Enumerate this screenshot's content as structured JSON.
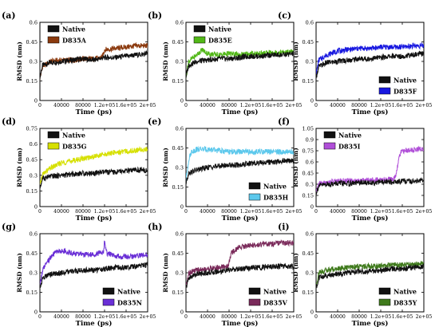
{
  "chart_data": [
    {
      "type": "line",
      "panel_label": "(a)",
      "xlabel": "Time (ps)",
      "ylabel": "RMSD (nm)",
      "xlim": [
        0,
        200000
      ],
      "ylim": [
        0,
        0.6
      ],
      "x_ticks": [
        "0",
        "40000",
        "80000",
        "1.2e+05",
        "1.6e+05",
        "2e+05"
      ],
      "y_ticks": [
        "0",
        "0.15",
        "0.3",
        "0.45",
        "0.6"
      ],
      "legend_position": "top-left",
      "series": [
        {
          "name": "Native",
          "color": "#111111",
          "x": [
            0,
            5000,
            20000,
            40000,
            60000,
            80000,
            100000,
            120000,
            140000,
            160000,
            180000,
            200000
          ],
          "y": [
            0.18,
            0.27,
            0.29,
            0.3,
            0.31,
            0.32,
            0.31,
            0.33,
            0.33,
            0.34,
            0.35,
            0.36
          ]
        },
        {
          "name": "D835A",
          "color": "#8b3a0e",
          "x": [
            0,
            5000,
            20000,
            40000,
            60000,
            80000,
            100000,
            115000,
            120000,
            140000,
            160000,
            180000,
            200000
          ],
          "y": [
            0.17,
            0.26,
            0.3,
            0.31,
            0.31,
            0.32,
            0.32,
            0.33,
            0.39,
            0.4,
            0.41,
            0.42,
            0.42
          ]
        }
      ]
    },
    {
      "type": "line",
      "panel_label": "(b)",
      "xlabel": "Time (ps)",
      "ylabel": "RMSD (nm)",
      "xlim": [
        0,
        200000
      ],
      "ylim": [
        0,
        0.6
      ],
      "x_ticks": [
        "0",
        "40000",
        "80000",
        "1.2e+05",
        "1.6e+05",
        "2e+05"
      ],
      "y_ticks": [
        "0",
        "0.15",
        "0.3",
        "0.45",
        "0.6"
      ],
      "legend_position": "top-left",
      "series": [
        {
          "name": "Native",
          "color": "#111111",
          "x": [
            0,
            5000,
            20000,
            40000,
            60000,
            80000,
            100000,
            120000,
            140000,
            160000,
            180000,
            200000
          ],
          "y": [
            0.18,
            0.27,
            0.3,
            0.31,
            0.32,
            0.32,
            0.33,
            0.34,
            0.34,
            0.35,
            0.35,
            0.36
          ]
        },
        {
          "name": "D835E",
          "color": "#52b818",
          "x": [
            0,
            5000,
            20000,
            30000,
            40000,
            60000,
            80000,
            100000,
            120000,
            140000,
            160000,
            180000,
            200000
          ],
          "y": [
            0.18,
            0.3,
            0.35,
            0.39,
            0.36,
            0.35,
            0.36,
            0.35,
            0.36,
            0.36,
            0.37,
            0.37,
            0.37
          ]
        }
      ]
    },
    {
      "type": "line",
      "panel_label": "(c)",
      "xlabel": "Time (ps)",
      "ylabel": "RMSD (nm)",
      "xlim": [
        0,
        200000
      ],
      "ylim": [
        0,
        0.6
      ],
      "x_ticks": [
        "0",
        "40000",
        "80000",
        "1.2e+05",
        "1.6e+05",
        "2e+05"
      ],
      "y_ticks": [
        "0",
        "0.15",
        "0.3",
        "0.45",
        "0.6"
      ],
      "legend_position": "bottom-right",
      "series": [
        {
          "name": "Native",
          "color": "#111111",
          "x": [
            0,
            5000,
            20000,
            40000,
            60000,
            80000,
            100000,
            120000,
            140000,
            160000,
            180000,
            200000
          ],
          "y": [
            0.18,
            0.26,
            0.29,
            0.3,
            0.31,
            0.32,
            0.32,
            0.33,
            0.34,
            0.34,
            0.35,
            0.36
          ]
        },
        {
          "name": "D835F",
          "color": "#1818e0",
          "x": [
            0,
            5000,
            20000,
            40000,
            60000,
            80000,
            100000,
            120000,
            140000,
            160000,
            180000,
            200000
          ],
          "y": [
            0.2,
            0.31,
            0.35,
            0.38,
            0.39,
            0.4,
            0.4,
            0.41,
            0.41,
            0.41,
            0.42,
            0.42
          ]
        }
      ]
    },
    {
      "type": "line",
      "panel_label": "(d)",
      "xlabel": "Time (ps)",
      "ylabel": "RMSD (nm)",
      "xlim": [
        0,
        200000
      ],
      "ylim": [
        0,
        0.75
      ],
      "x_ticks": [
        "0",
        "40000",
        "80000",
        "1.2e+05",
        "1.6e+05",
        "2e+05"
      ],
      "y_ticks": [
        "0",
        "0.15",
        "0.3",
        "0.45",
        "0.6",
        "0.75"
      ],
      "legend_position": "top-left",
      "series": [
        {
          "name": "Native",
          "color": "#111111",
          "x": [
            0,
            5000,
            20000,
            40000,
            60000,
            80000,
            100000,
            120000,
            140000,
            160000,
            180000,
            200000
          ],
          "y": [
            0.18,
            0.27,
            0.29,
            0.3,
            0.31,
            0.32,
            0.32,
            0.33,
            0.33,
            0.34,
            0.35,
            0.35
          ]
        },
        {
          "name": "D835G",
          "color": "#d6e000",
          "x": [
            0,
            5000,
            20000,
            40000,
            60000,
            80000,
            100000,
            120000,
            140000,
            160000,
            180000,
            200000
          ],
          "y": [
            0.2,
            0.31,
            0.37,
            0.42,
            0.44,
            0.46,
            0.48,
            0.5,
            0.52,
            0.53,
            0.54,
            0.55
          ]
        }
      ]
    },
    {
      "type": "line",
      "panel_label": "(e)",
      "xlabel": "Time (ps)",
      "ylabel": "RMSD (nm)",
      "xlim": [
        0,
        200000
      ],
      "ylim": [
        0,
        0.6
      ],
      "x_ticks": [
        "0",
        "40000",
        "80000",
        "1.2e+05",
        "1.6e+05",
        "2e+05"
      ],
      "y_ticks": [
        "0",
        "0.15",
        "0.3",
        "0.45",
        "0.6"
      ],
      "legend_position": "bottom-right",
      "series": [
        {
          "name": "Native",
          "color": "#111111",
          "x": [
            0,
            5000,
            20000,
            40000,
            60000,
            80000,
            100000,
            120000,
            140000,
            160000,
            180000,
            200000
          ],
          "y": [
            0.18,
            0.26,
            0.28,
            0.3,
            0.31,
            0.32,
            0.32,
            0.33,
            0.34,
            0.34,
            0.35,
            0.35
          ]
        },
        {
          "name": "D835H",
          "color": "#5cc8ec",
          "x": [
            0,
            5000,
            10000,
            20000,
            40000,
            60000,
            80000,
            100000,
            120000,
            140000,
            160000,
            180000,
            200000
          ],
          "y": [
            0.2,
            0.36,
            0.42,
            0.44,
            0.44,
            0.43,
            0.42,
            0.42,
            0.42,
            0.42,
            0.42,
            0.42,
            0.42
          ]
        }
      ]
    },
    {
      "type": "line",
      "panel_label": "(f)",
      "xlabel": "Time (ps)",
      "ylabel": "RMSD (nm)",
      "xlim": [
        0,
        200000
      ],
      "ylim": [
        0,
        1.05
      ],
      "x_ticks": [
        "0",
        "40000",
        "80000",
        "1.2e+05",
        "1.6e+05",
        "2e+05"
      ],
      "y_ticks": [
        "0",
        "0.15",
        "0.3",
        "0.45",
        "0.6",
        "0.75",
        "0.9",
        "1.05"
      ],
      "legend_position": "top-left",
      "series": [
        {
          "name": "Native",
          "color": "#111111",
          "x": [
            0,
            5000,
            20000,
            40000,
            60000,
            80000,
            100000,
            120000,
            140000,
            160000,
            180000,
            200000
          ],
          "y": [
            0.18,
            0.28,
            0.3,
            0.31,
            0.31,
            0.32,
            0.32,
            0.33,
            0.33,
            0.34,
            0.34,
            0.35
          ]
        },
        {
          "name": "D835I",
          "color": "#b04fd8",
          "x": [
            0,
            5000,
            20000,
            40000,
            60000,
            80000,
            100000,
            120000,
            140000,
            148000,
            155000,
            160000,
            180000,
            200000
          ],
          "y": [
            0.2,
            0.3,
            0.33,
            0.34,
            0.35,
            0.35,
            0.36,
            0.36,
            0.36,
            0.4,
            0.7,
            0.75,
            0.76,
            0.78
          ]
        }
      ]
    },
    {
      "type": "line",
      "panel_label": "(g)",
      "xlabel": "Time (ps)",
      "ylabel": "RMSD (nm)",
      "xlim": [
        0,
        200000
      ],
      "ylim": [
        0,
        0.6
      ],
      "x_ticks": [
        "0",
        "40000",
        "80000",
        "1.2e+05",
        "1.6e+05",
        "2e+05"
      ],
      "y_ticks": [
        "0",
        "0.15",
        "0.3",
        "0.45",
        "0.6"
      ],
      "legend_position": "bottom-right",
      "series": [
        {
          "name": "Native",
          "color": "#111111",
          "x": [
            0,
            5000,
            20000,
            40000,
            60000,
            80000,
            100000,
            120000,
            140000,
            160000,
            180000,
            200000
          ],
          "y": [
            0.18,
            0.26,
            0.29,
            0.3,
            0.31,
            0.32,
            0.32,
            0.33,
            0.34,
            0.34,
            0.35,
            0.36
          ]
        },
        {
          "name": "D835N",
          "color": "#6a2fd6",
          "x": [
            0,
            5000,
            20000,
            30000,
            40000,
            60000,
            80000,
            100000,
            118000,
            120000,
            124000,
            140000,
            160000,
            180000,
            200000
          ],
          "y": [
            0.2,
            0.32,
            0.42,
            0.46,
            0.47,
            0.45,
            0.44,
            0.44,
            0.46,
            0.55,
            0.45,
            0.43,
            0.42,
            0.43,
            0.44
          ]
        }
      ]
    },
    {
      "type": "line",
      "panel_label": "(h)",
      "xlabel": "Time (ps)",
      "ylabel": "RMSD (nm)",
      "xlim": [
        0,
        200000
      ],
      "ylim": [
        0,
        0.6
      ],
      "x_ticks": [
        "0",
        "40000",
        "80000",
        "1.2e+05",
        "1.6e+05",
        "2e+05"
      ],
      "y_ticks": [
        "0",
        "0.15",
        "0.3",
        "0.45",
        "0.6"
      ],
      "legend_position": "bottom-right",
      "series": [
        {
          "name": "Native",
          "color": "#111111",
          "x": [
            0,
            5000,
            20000,
            40000,
            60000,
            80000,
            100000,
            120000,
            140000,
            160000,
            180000,
            200000
          ],
          "y": [
            0.18,
            0.26,
            0.29,
            0.3,
            0.31,
            0.32,
            0.33,
            0.34,
            0.34,
            0.35,
            0.35,
            0.35
          ]
        },
        {
          "name": "D835V",
          "color": "#7a2a5a",
          "x": [
            0,
            5000,
            20000,
            40000,
            60000,
            78000,
            84000,
            100000,
            120000,
            140000,
            160000,
            180000,
            200000
          ],
          "y": [
            0.2,
            0.3,
            0.32,
            0.33,
            0.34,
            0.35,
            0.45,
            0.5,
            0.51,
            0.52,
            0.52,
            0.53,
            0.53
          ]
        }
      ]
    },
    {
      "type": "line",
      "panel_label": "(i)",
      "xlabel": "Time (ps)",
      "ylabel": "RMSD (nm)",
      "xlim": [
        0,
        200000
      ],
      "ylim": [
        0,
        0.6
      ],
      "x_ticks": [
        "0",
        "40000",
        "80000",
        "1.2e+05",
        "1.6e+05",
        "2e+05"
      ],
      "y_ticks": [
        "0",
        "0.15",
        "0.3",
        "0.45",
        "0.6"
      ],
      "legend_position": "bottom-right",
      "series": [
        {
          "name": "Native",
          "color": "#111111",
          "x": [
            0,
            5000,
            20000,
            40000,
            60000,
            80000,
            100000,
            120000,
            140000,
            160000,
            180000,
            200000
          ],
          "y": [
            0.18,
            0.26,
            0.28,
            0.29,
            0.3,
            0.31,
            0.31,
            0.32,
            0.33,
            0.33,
            0.34,
            0.35
          ]
        },
        {
          "name": "D835Y",
          "color": "#3f7a1c",
          "x": [
            0,
            5000,
            20000,
            40000,
            60000,
            80000,
            100000,
            120000,
            140000,
            160000,
            180000,
            200000
          ],
          "y": [
            0.2,
            0.3,
            0.32,
            0.33,
            0.34,
            0.35,
            0.35,
            0.35,
            0.36,
            0.36,
            0.37,
            0.37
          ]
        }
      ]
    }
  ]
}
